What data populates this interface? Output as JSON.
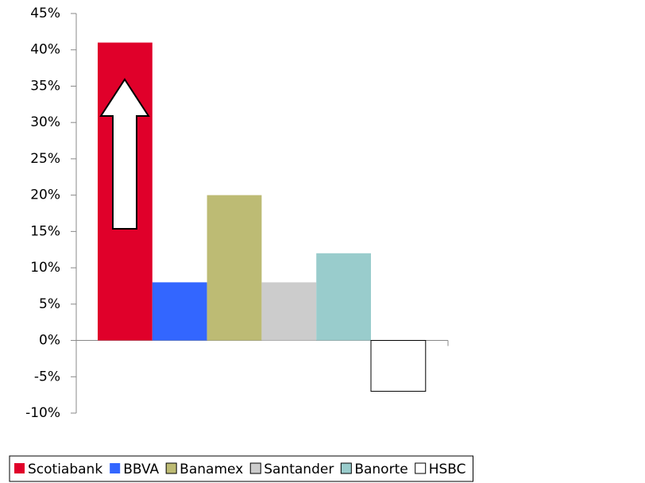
{
  "chart_data": {
    "type": "bar",
    "categories": [
      null
    ],
    "series": [
      {
        "name": "Scotiabank",
        "color": "#e0002a",
        "values": [
          41
        ]
      },
      {
        "name": "BBVA",
        "color": "#3366ff",
        "values": [
          8
        ]
      },
      {
        "name": "Banamex",
        "color": "#bdbb74",
        "values": [
          20
        ]
      },
      {
        "name": "Santander",
        "color": "#cccccc",
        "values": [
          8
        ]
      },
      {
        "name": "Banorte",
        "color": "#99cccc",
        "values": [
          12
        ]
      },
      {
        "name": "HSBC",
        "color": "#ffffff",
        "values": [
          -7
        ]
      }
    ],
    "ylim": [
      -10,
      45
    ],
    "yticks": [
      {
        "value": -10,
        "label": "-10%"
      },
      {
        "value": -5,
        "label": "-5%"
      },
      {
        "value": 0,
        "label": "0%"
      },
      {
        "value": 5,
        "label": "5%"
      },
      {
        "value": 10,
        "label": "10%"
      },
      {
        "value": 15,
        "label": "15%"
      },
      {
        "value": 20,
        "label": "20%"
      },
      {
        "value": 25,
        "label": "25%"
      },
      {
        "value": 30,
        "label": "30%"
      },
      {
        "value": 35,
        "label": "35%"
      },
      {
        "value": 40,
        "label": "40%"
      },
      {
        "value": 45,
        "label": "45%"
      }
    ],
    "grid": false,
    "legend": "bottom"
  }
}
